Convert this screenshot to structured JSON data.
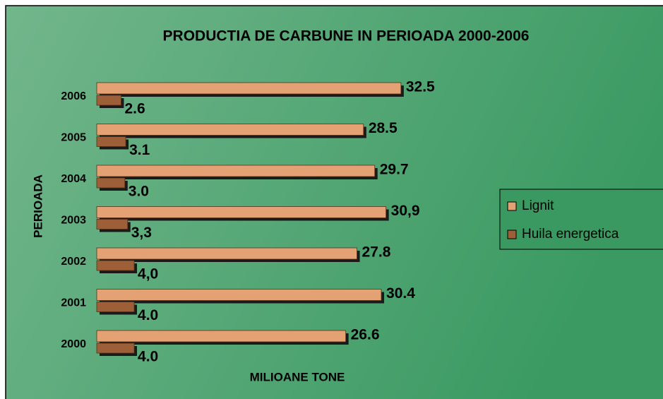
{
  "chart_data": {
    "type": "hbar",
    "title": "PRODUCTIA DE CARBUNE IN PERIOADA 2000-2006",
    "ylabel": "PERIOADA",
    "xlabel": "MILIOANE TONE",
    "categories": [
      "2006",
      "2005",
      "2004",
      "2003",
      "2002",
      "2001",
      "2000"
    ],
    "series": [
      {
        "name": "Lignit",
        "color": "#e3a174",
        "values": [
          32.5,
          28.5,
          29.7,
          30.9,
          27.8,
          30.4,
          26.6
        ],
        "value_labels": [
          "32.5",
          "28.5",
          "29.7",
          "30,9",
          "27.8",
          "30.4",
          "26.6"
        ]
      },
      {
        "name": "Huila energetica",
        "color": "#9c5f38",
        "values": [
          2.6,
          3.1,
          3.0,
          3.3,
          4.0,
          4.0,
          4.0
        ],
        "value_labels": [
          "2.6",
          "3.1",
          "3.0",
          "3,3",
          "4,0",
          "4.0",
          "4.0"
        ]
      }
    ],
    "xlim": [
      0,
      35
    ],
    "legend": "right"
  }
}
